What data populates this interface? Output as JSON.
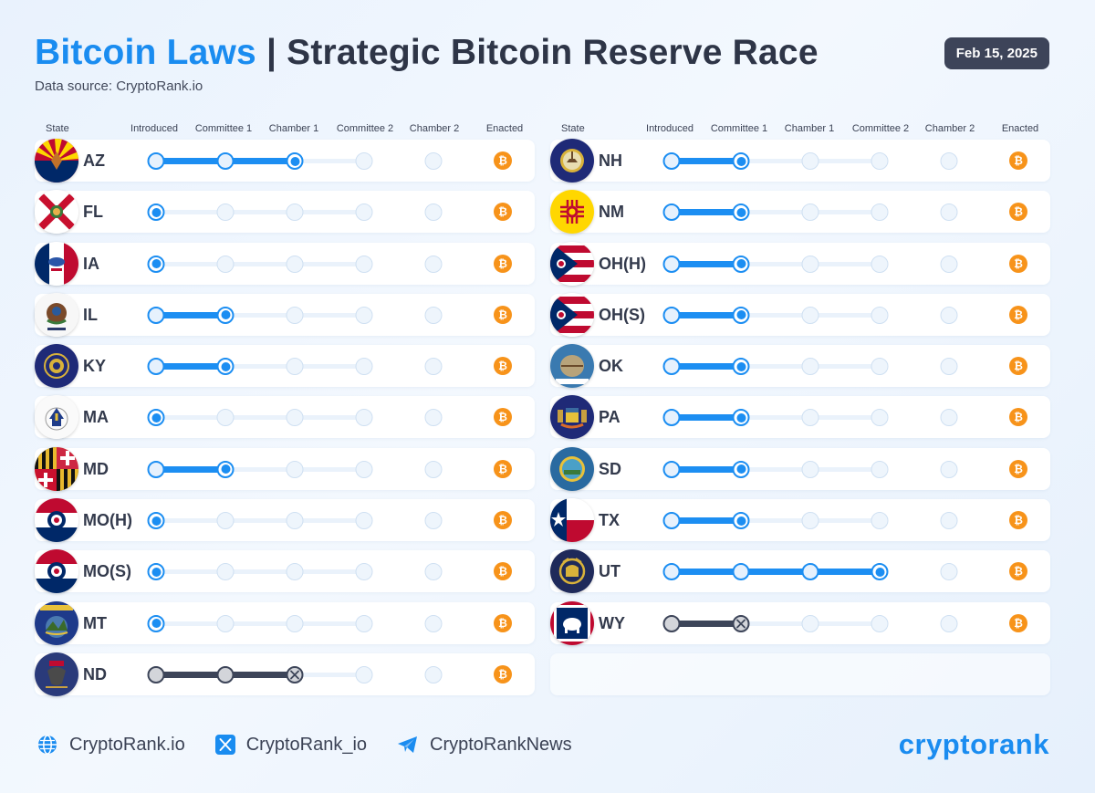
{
  "header": {
    "title_part1": "Bitcoin Laws",
    "title_sep": " | ",
    "title_part2": "Strategic Bitcoin Reserve Race",
    "subtitle": "Data source: CryptoRank.io",
    "date": "Feb 15, 2025"
  },
  "columns": [
    "State",
    "Introduced",
    "Committee 1",
    "Chamber 1",
    "Committee 2",
    "Chamber 2",
    "Enacted"
  ],
  "enacted_symbol": "₿",
  "colors": {
    "accent": "#1a8cf0",
    "progress": "#1c8ef2",
    "failed": "#3d4559",
    "bitcoin": "#f7931a"
  },
  "left_states": [
    {
      "code": "AZ",
      "stage": 2,
      "status": "active",
      "flag": "AZ"
    },
    {
      "code": "FL",
      "stage": 0,
      "status": "active",
      "flag": "FL"
    },
    {
      "code": "IA",
      "stage": 0,
      "status": "active",
      "flag": "IA"
    },
    {
      "code": "IL",
      "stage": 1,
      "status": "active",
      "flag": "IL"
    },
    {
      "code": "KY",
      "stage": 1,
      "status": "active",
      "flag": "KY"
    },
    {
      "code": "MA",
      "stage": 0,
      "status": "active",
      "flag": "MA"
    },
    {
      "code": "MD",
      "stage": 1,
      "status": "active",
      "flag": "MD"
    },
    {
      "code": "MO(H)",
      "stage": 0,
      "status": "active",
      "flag": "MO"
    },
    {
      "code": "MO(S)",
      "stage": 0,
      "status": "active",
      "flag": "MO"
    },
    {
      "code": "MT",
      "stage": 0,
      "status": "active",
      "flag": "MT"
    },
    {
      "code": "ND",
      "stage": 2,
      "status": "failed",
      "flag": "ND"
    }
  ],
  "right_states": [
    {
      "code": "NH",
      "stage": 1,
      "status": "active",
      "flag": "NH"
    },
    {
      "code": "NM",
      "stage": 1,
      "status": "active",
      "flag": "NM"
    },
    {
      "code": "OH(H)",
      "stage": 1,
      "status": "active",
      "flag": "OH"
    },
    {
      "code": "OH(S)",
      "stage": 1,
      "status": "active",
      "flag": "OH"
    },
    {
      "code": "OK",
      "stage": 1,
      "status": "active",
      "flag": "OK"
    },
    {
      "code": "PA",
      "stage": 1,
      "status": "active",
      "flag": "PA"
    },
    {
      "code": "SD",
      "stage": 1,
      "status": "active",
      "flag": "SD"
    },
    {
      "code": "TX",
      "stage": 1,
      "status": "active",
      "flag": "TX"
    },
    {
      "code": "UT",
      "stage": 3,
      "status": "active",
      "flag": "UT"
    },
    {
      "code": "WY",
      "stage": 1,
      "status": "failed",
      "flag": "WY"
    }
  ],
  "footer": {
    "website": "CryptoRank.io",
    "twitter": "CryptoRank_io",
    "telegram": "CryptoRankNews",
    "brand": "cryptorank"
  }
}
